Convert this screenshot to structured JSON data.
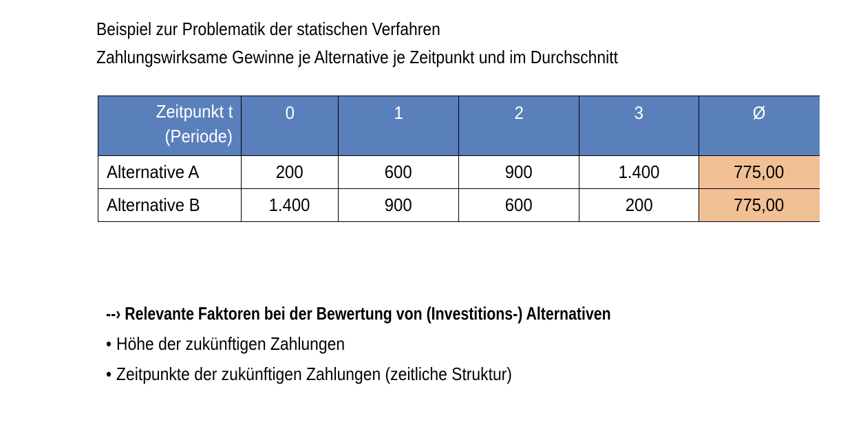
{
  "heading": {
    "title": "Beispiel zur Problematik der statischen Verfahren",
    "subtitle": "Zahlungswirksame Gewinne je Alternative je Zeitpunkt und im Durchschnitt"
  },
  "table": {
    "header_label_line1": "Zeitpunkt t",
    "header_label_line2": "(Periode)",
    "columns": [
      "0",
      "1",
      "2",
      "3",
      "Ø"
    ],
    "rows": [
      {
        "label": "Alternative A",
        "values": [
          "200",
          "600",
          "900",
          "1.400"
        ],
        "average": "775,00"
      },
      {
        "label": "Alternative B",
        "values": [
          "1.400",
          "900",
          "600",
          "200"
        ],
        "average": "775,00"
      }
    ],
    "header_color": "#5a80bb",
    "average_color": "#f2c095"
  },
  "notes": {
    "heading": "--› Relevante Faktoren bei der Bewertung von (Investitions-) Alternativen",
    "bullet_symbol": "•",
    "bullets": [
      "Höhe der zukünftigen Zahlungen",
      "Zeitpunkte der zukünftigen Zahlungen (zeitliche Struktur)"
    ]
  }
}
